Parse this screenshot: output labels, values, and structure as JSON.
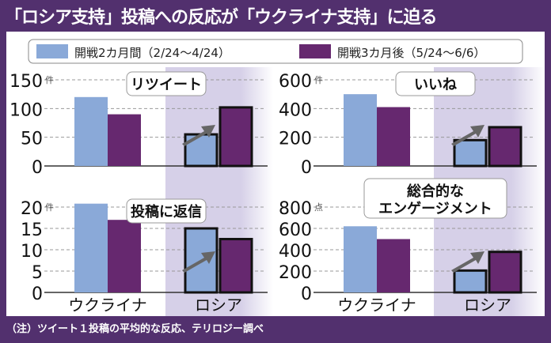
{
  "title": "「ロシア支持」投稿への反応が「ウクライナ支持」に迫る",
  "footnote": "（注）ツイート１投稿の平均的な反応、テリロジー調べ",
  "colors": {
    "period1": "#8aa9d8",
    "period2": "#66286f",
    "background": "#52306e",
    "shade": "#d6d0e8"
  },
  "legend": [
    {
      "label": "開戦2カ月間（2/24〜4/24）",
      "color": "#8aa9d8"
    },
    {
      "label": "開戦3カ月後（5/24〜6/6）",
      "color": "#66286f"
    }
  ],
  "chart_data": [
    {
      "type": "bar",
      "title": "リツイート",
      "unit": "件",
      "categories": [
        "ウクライナ",
        "ロシア"
      ],
      "ylim": [
        0,
        150
      ],
      "yticks": [
        0,
        50,
        100,
        150
      ],
      "grid": true,
      "series": [
        {
          "name": "開戦2カ月間（2/24〜4/24）",
          "values": [
            120,
            55
          ]
        },
        {
          "name": "開戦3カ月後（5/24〜6/6）",
          "values": [
            90,
            102
          ]
        }
      ]
    },
    {
      "type": "bar",
      "title": "いいね",
      "unit": "件",
      "categories": [
        "ウクライナ",
        "ロシア"
      ],
      "ylim": [
        0,
        600
      ],
      "yticks": [
        0,
        200,
        400,
        600
      ],
      "grid": true,
      "series": [
        {
          "name": "開戦2カ月間（2/24〜4/24）",
          "values": [
            500,
            180
          ]
        },
        {
          "name": "開戦3カ月後（5/24〜6/6）",
          "values": [
            410,
            270
          ]
        }
      ]
    },
    {
      "type": "bar",
      "title": "投稿に返信",
      "unit": "件",
      "categories": [
        "ウクライナ",
        "ロシア"
      ],
      "ylim": [
        0,
        20
      ],
      "yticks": [
        0,
        5,
        10,
        15,
        20
      ],
      "grid": true,
      "series": [
        {
          "name": "開戦2カ月間（2/24〜4/24）",
          "values": [
            20.8,
            15
          ]
        },
        {
          "name": "開戦3カ月後（5/24〜6/6）",
          "values": [
            17,
            12.5
          ]
        }
      ]
    },
    {
      "type": "bar",
      "title": "総合的な\nエンゲージメント",
      "unit": "点",
      "categories": [
        "ウクライナ",
        "ロシア"
      ],
      "ylim": [
        0,
        800
      ],
      "yticks": [
        0,
        200,
        400,
        600,
        800
      ],
      "grid": true,
      "series": [
        {
          "name": "開戦2カ月間（2/24〜4/24）",
          "values": [
            620,
            205
          ]
        },
        {
          "name": "開戦3カ月後（5/24〜6/6）",
          "values": [
            500,
            380
          ]
        }
      ]
    }
  ]
}
